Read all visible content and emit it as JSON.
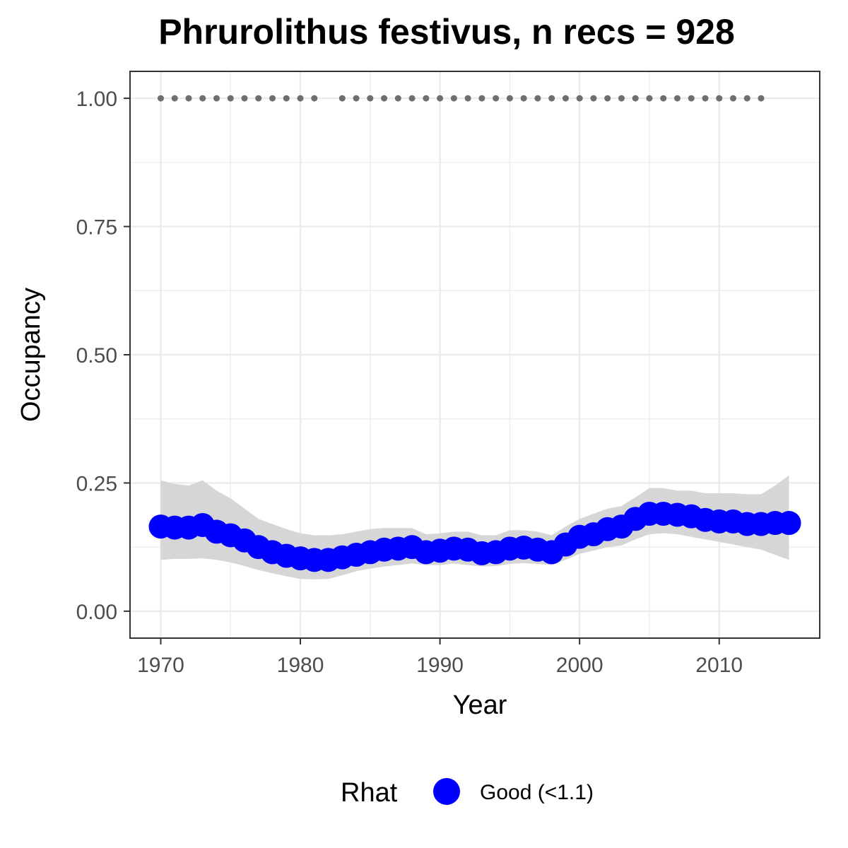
{
  "chart_data": {
    "type": "line",
    "title": "Phrurolithus festivus, n recs = 928",
    "xlabel": "Year",
    "ylabel": "Occupancy",
    "xlim": [
      1967.8,
      2017.2
    ],
    "ylim": [
      -0.0525,
      1.0525
    ],
    "x_ticks": [
      1970,
      1980,
      1990,
      2000,
      2010
    ],
    "x_tick_labels": [
      "1970",
      "1980",
      "1990",
      "2000",
      "2010"
    ],
    "y_ticks": [
      0,
      0.25,
      0.5,
      0.75,
      1
    ],
    "y_tick_labels": [
      "0.00",
      "0.25",
      "0.50",
      "0.75",
      "1.00"
    ],
    "grid": true,
    "legend": {
      "position": "bottom",
      "title": "Rhat",
      "entries": [
        {
          "label": "Good (<1.1)",
          "color": "#0000ff"
        }
      ]
    },
    "colors": {
      "occupancy": "#0000ff",
      "ribbon": "#d6d6d6",
      "records": "#6e6e6e",
      "grid": "#ebebeb",
      "panel_border": "#333333"
    },
    "series": [
      {
        "name": "Good (<1.1)",
        "x": [
          1970,
          1971,
          1972,
          1973,
          1974,
          1975,
          1976,
          1977,
          1978,
          1979,
          1980,
          1981,
          1982,
          1983,
          1984,
          1985,
          1986,
          1987,
          1988,
          1989,
          1990,
          1991,
          1992,
          1993,
          1994,
          1995,
          1996,
          1997,
          1998,
          1999,
          2000,
          2001,
          2002,
          2003,
          2004,
          2005,
          2006,
          2007,
          2008,
          2009,
          2010,
          2011,
          2012,
          2013,
          2014,
          2015
        ],
        "y": [
          0.165,
          0.163,
          0.163,
          0.168,
          0.155,
          0.148,
          0.138,
          0.125,
          0.115,
          0.108,
          0.103,
          0.1,
          0.1,
          0.105,
          0.11,
          0.115,
          0.12,
          0.122,
          0.125,
          0.115,
          0.118,
          0.122,
          0.12,
          0.113,
          0.115,
          0.122,
          0.124,
          0.12,
          0.115,
          0.13,
          0.145,
          0.15,
          0.16,
          0.165,
          0.18,
          0.19,
          0.19,
          0.188,
          0.185,
          0.178,
          0.175,
          0.175,
          0.17,
          0.17,
          0.172,
          0.172
        ],
        "lower": [
          0.1,
          0.102,
          0.102,
          0.103,
          0.1,
          0.095,
          0.088,
          0.08,
          0.074,
          0.068,
          0.063,
          0.062,
          0.063,
          0.07,
          0.078,
          0.083,
          0.087,
          0.09,
          0.093,
          0.09,
          0.09,
          0.093,
          0.09,
          0.087,
          0.088,
          0.092,
          0.094,
          0.092,
          0.09,
          0.1,
          0.112,
          0.118,
          0.125,
          0.128,
          0.14,
          0.15,
          0.152,
          0.15,
          0.145,
          0.14,
          0.135,
          0.13,
          0.125,
          0.12,
          0.11,
          0.1
        ],
        "upper": [
          0.255,
          0.248,
          0.245,
          0.255,
          0.235,
          0.22,
          0.2,
          0.18,
          0.17,
          0.16,
          0.152,
          0.148,
          0.148,
          0.15,
          0.155,
          0.16,
          0.162,
          0.162,
          0.162,
          0.15,
          0.152,
          0.155,
          0.155,
          0.148,
          0.148,
          0.158,
          0.158,
          0.155,
          0.148,
          0.165,
          0.18,
          0.19,
          0.2,
          0.205,
          0.222,
          0.24,
          0.24,
          0.235,
          0.235,
          0.23,
          0.23,
          0.23,
          0.228,
          0.228,
          0.245,
          0.265
        ]
      }
    ],
    "records": {
      "x": [
        1970,
        1971,
        1972,
        1973,
        1974,
        1975,
        1976,
        1977,
        1978,
        1979,
        1980,
        1981,
        1983,
        1984,
        1985,
        1986,
        1987,
        1988,
        1989,
        1990,
        1991,
        1992,
        1993,
        1994,
        1995,
        1996,
        1997,
        1998,
        1999,
        2000,
        2001,
        2002,
        2003,
        2004,
        2005,
        2006,
        2007,
        2008,
        2009,
        2010,
        2011,
        2012,
        2013
      ],
      "y": 1
    }
  }
}
